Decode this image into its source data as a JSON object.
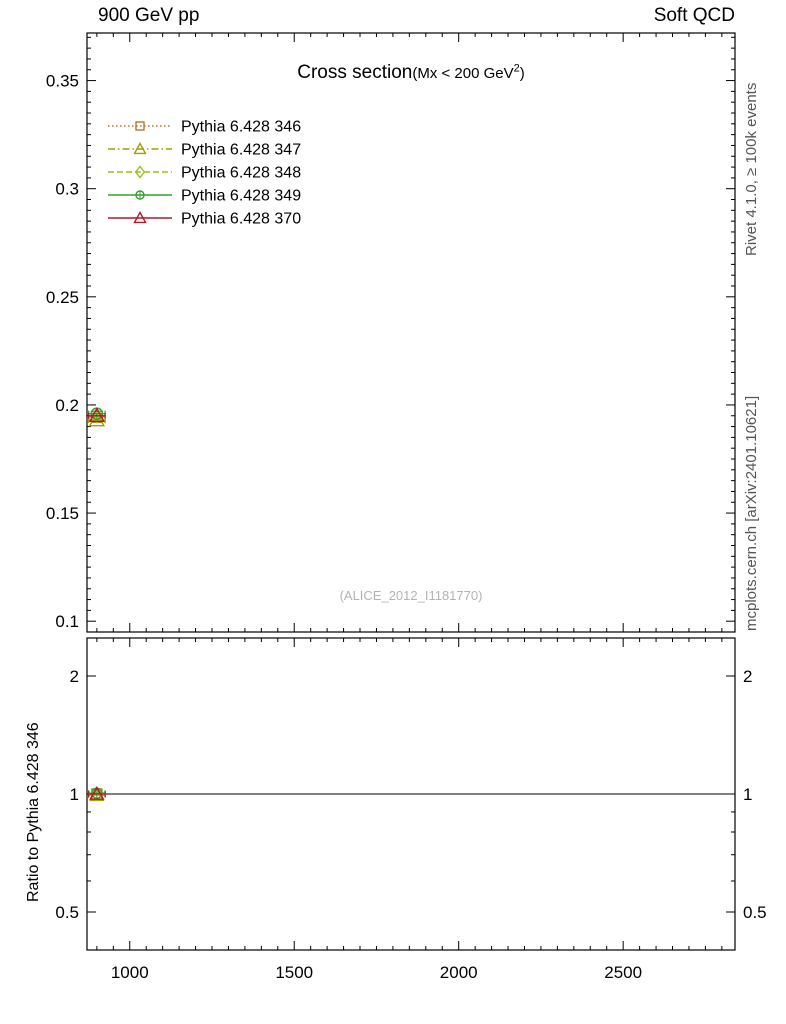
{
  "header": {
    "left": "900 GeV pp",
    "right": "Soft QCD"
  },
  "title": {
    "main": "Cross section",
    "paren": "(Mx < 200 GeV",
    "sup": "2",
    "close": ")"
  },
  "watermark": "(ALICE_2012_I1181770)",
  "side_notes": {
    "top": "Rivet 4.1.0, ≥ 100k events",
    "bottom": "mcplots.cern.ch [arXiv:2401.10621]"
  },
  "ratio_axis_label": "Ratio to Pythia 6.428 346",
  "chart_data": {
    "type": "scatter",
    "title": "Cross section (Mx < 200 GeV^2)",
    "xlabel": "",
    "ylabel": "",
    "x_point": 900,
    "x_err": 25,
    "series": [
      {
        "name": "Pythia 6.428 346",
        "color": "#b87333",
        "marker": "square",
        "linestyle": "dotted",
        "value": 0.1945,
        "ratio": 1.0
      },
      {
        "name": "Pythia 6.428 347",
        "color": "#a0a000",
        "marker": "triangle",
        "linestyle": "dashdot",
        "value": 0.193,
        "ratio": 0.993
      },
      {
        "name": "Pythia 6.428 348",
        "color": "#95c11f",
        "marker": "diamond",
        "linestyle": "dashed",
        "value": 0.195,
        "ratio": 1.0
      },
      {
        "name": "Pythia 6.428 349",
        "color": "#33a02c",
        "marker": "circle-plus",
        "linestyle": "solid",
        "value": 0.196,
        "ratio": 1.005
      },
      {
        "name": "Pythia 6.428 370",
        "color": "#b2182b",
        "marker": "triangle",
        "linestyle": "solid",
        "value": 0.195,
        "ratio": 1.0
      }
    ],
    "xlim": [
      870,
      2840
    ],
    "xticks": {
      "values": [
        1000,
        1500,
        2000,
        2500
      ],
      "labels": [
        "1000",
        "1500",
        "2000",
        "2500"
      ],
      "minor_step": 50
    },
    "main_axis": {
      "ylim": [
        0.095,
        0.372
      ],
      "ticks": [
        0.1,
        0.15,
        0.2,
        0.25,
        0.3,
        0.35
      ],
      "labels": [
        "0.1",
        "0.15",
        "0.2",
        "0.25",
        "0.3",
        "0.35"
      ],
      "minor_step": 0.005
    },
    "ratio_axis": {
      "scale": "log",
      "ylim": [
        0.4,
        2.5
      ],
      "ticks": [
        0.5,
        1,
        2
      ],
      "labels": [
        "0.5",
        "1",
        "2"
      ],
      "minor_ticks": [
        0.4,
        0.6,
        0.7,
        0.8,
        0.9
      ],
      "baseline": 1.0
    },
    "legend_position": "top-left",
    "grid": false
  }
}
